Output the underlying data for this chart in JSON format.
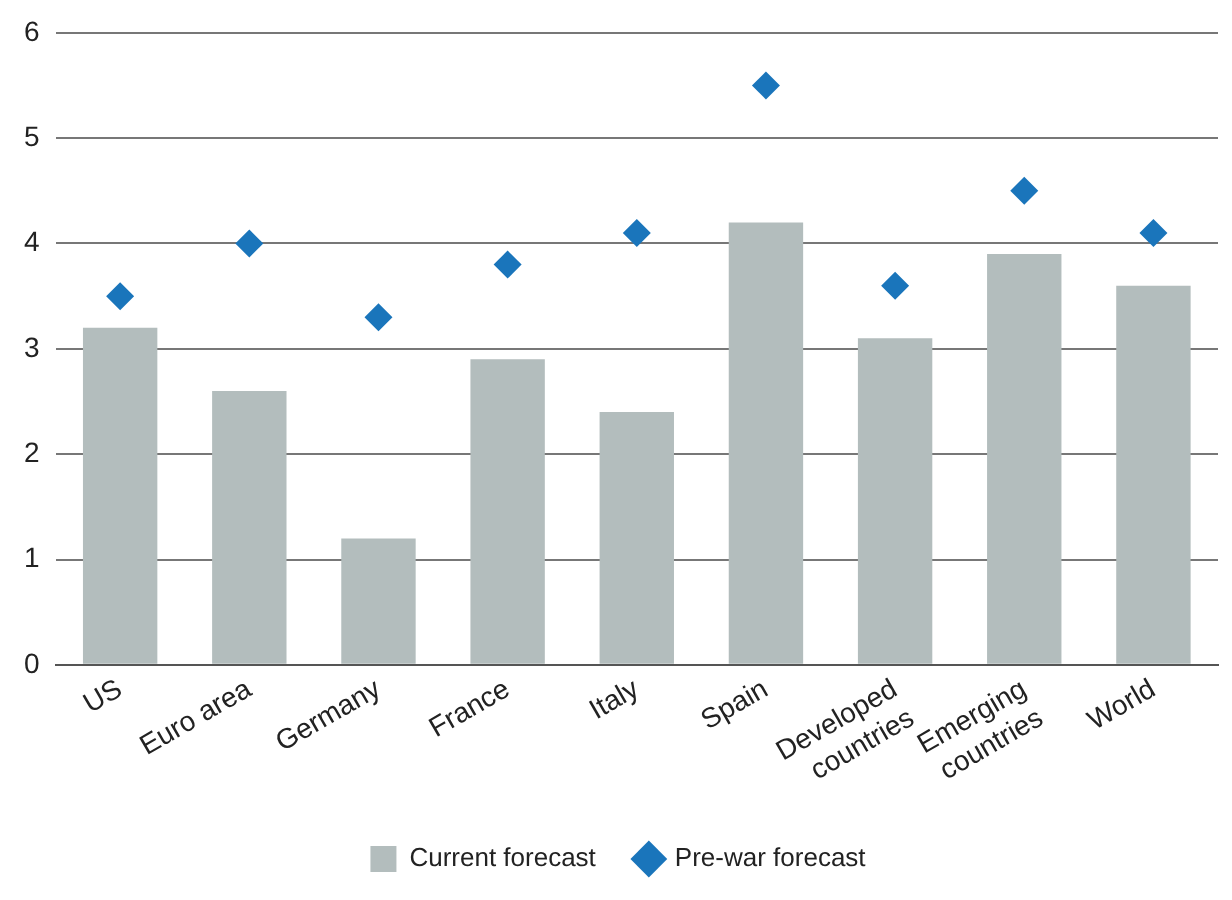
{
  "chart_data": {
    "type": "bar",
    "categories": [
      "US",
      "Euro area",
      "Germany",
      "France",
      "Italy",
      "Spain",
      "Developed countries",
      "Emerging countries",
      "World"
    ],
    "series": [
      {
        "name": "Current forecast",
        "color": "#b3bdbd",
        "values": [
          3.2,
          2.6,
          1.2,
          2.9,
          2.4,
          4.2,
          3.1,
          3.9,
          3.6
        ]
      },
      {
        "name": "Pre-war forecast",
        "type": "scatter",
        "color": "#1a75bb",
        "marker": "diamond",
        "values": [
          3.5,
          4.0,
          3.3,
          3.8,
          4.1,
          5.5,
          3.6,
          4.5,
          4.1
        ]
      }
    ],
    "ylim": [
      0,
      6
    ],
    "yticks": [
      0,
      1,
      2,
      3,
      4,
      5,
      6
    ],
    "grid": "y",
    "legend": "bottom"
  }
}
